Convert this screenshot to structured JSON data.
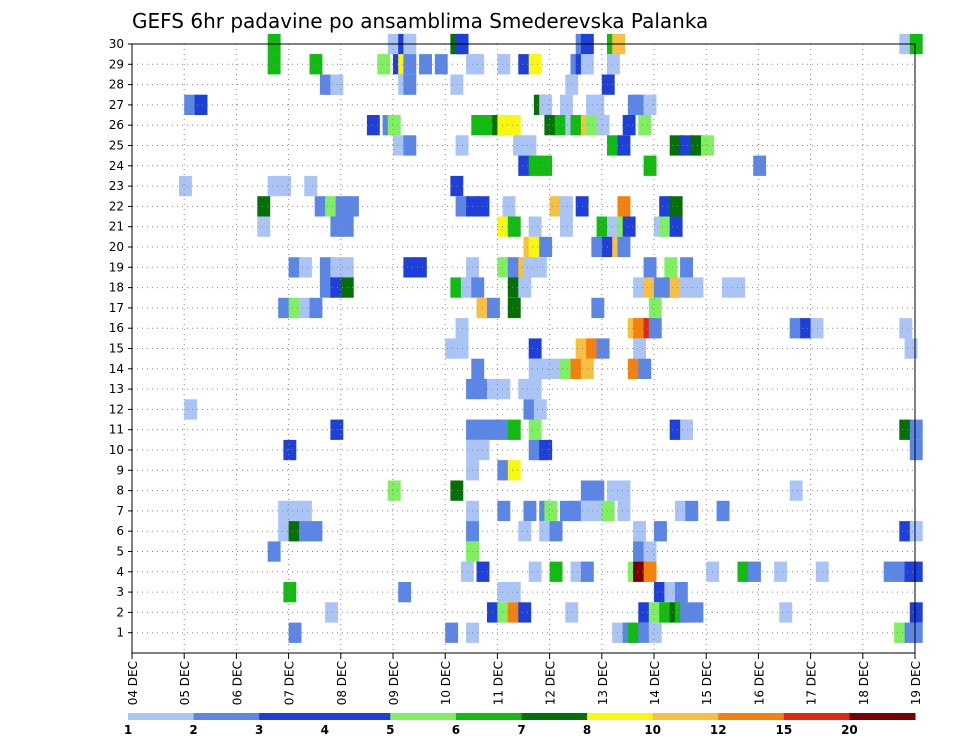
{
  "chart_data": {
    "type": "heatmap",
    "title": "GEFS 6hr padavine po ansamblima Smederevska Palanka",
    "x_tick_labels": [
      "04 DEC",
      "05 DEC",
      "06 DEC",
      "07 DEC",
      "08 DEC",
      "09 DEC",
      "10 DEC",
      "11 DEC",
      "12 DEC",
      "13 DEC",
      "14 DEC",
      "15 DEC",
      "16 DEC",
      "17 DEC",
      "18 DEC",
      "19 DEC"
    ],
    "y_tick_labels": [
      "1",
      "2",
      "3",
      "4",
      "5",
      "6",
      "7",
      "8",
      "9",
      "10",
      "11",
      "12",
      "13",
      "14",
      "15",
      "16",
      "17",
      "18",
      "19",
      "20",
      "21",
      "22",
      "23",
      "24",
      "25",
      "26",
      "27",
      "28",
      "29",
      "30"
    ],
    "ylim": [
      0,
      30
    ],
    "colorbar": {
      "labels": [
        "1",
        "2",
        "3",
        "4",
        "5",
        "6",
        "7",
        "8",
        "10",
        "12",
        "15",
        "20"
      ],
      "colors": [
        "#a9c4f5",
        "#5b86e6",
        "#1e3fd8",
        "#1e3fd8",
        "#80f060",
        "#11bb11",
        "#066f06",
        "#f7f70f",
        "#f7c040",
        "#f5810d",
        "#dd2a10",
        "#7a0000"
      ]
    },
    "grid": true,
    "cells": [
      [
        30,
        2.6,
        6
      ],
      [
        30,
        4.9,
        1
      ],
      [
        30,
        5.1,
        3
      ],
      [
        30,
        5.2,
        1
      ],
      [
        30,
        6.1,
        7
      ],
      [
        30,
        6.2,
        3
      ],
      [
        30,
        8.5,
        2
      ],
      [
        30,
        8.6,
        3
      ],
      [
        30,
        9.1,
        6
      ],
      [
        30,
        9.2,
        10
      ],
      [
        30,
        14.7,
        1
      ],
      [
        30,
        14.9,
        6
      ],
      [
        29,
        2.6,
        6
      ],
      [
        29,
        3.4,
        6
      ],
      [
        29,
        4.7,
        5
      ],
      [
        29,
        5.0,
        3
      ],
      [
        29,
        5.1,
        8
      ],
      [
        29,
        5.2,
        2
      ],
      [
        29,
        5.5,
        2
      ],
      [
        29,
        5.8,
        2
      ],
      [
        29,
        6.4,
        1
      ],
      [
        29,
        6.5,
        1
      ],
      [
        29,
        7.0,
        1
      ],
      [
        29,
        7.4,
        3
      ],
      [
        29,
        7.6,
        8
      ],
      [
        29,
        8.4,
        2
      ],
      [
        29,
        8.5,
        3
      ],
      [
        29,
        8.6,
        1
      ],
      [
        29,
        9.1,
        1
      ],
      [
        28,
        3.6,
        2
      ],
      [
        28,
        3.7,
        2
      ],
      [
        28,
        3.8,
        1
      ],
      [
        28,
        5.1,
        1
      ],
      [
        28,
        5.2,
        2
      ],
      [
        28,
        6.1,
        1
      ],
      [
        28,
        8.3,
        1
      ],
      [
        28,
        9.0,
        3
      ],
      [
        27,
        1.0,
        2
      ],
      [
        27,
        1.2,
        3
      ],
      [
        27,
        7.7,
        7
      ],
      [
        27,
        7.8,
        1
      ],
      [
        27,
        9.5,
        2
      ],
      [
        27,
        9.6,
        2
      ],
      [
        27,
        9.8,
        1
      ],
      [
        27,
        8.2,
        1
      ],
      [
        27,
        8.7,
        1
      ],
      [
        27,
        8.8,
        1
      ],
      [
        26,
        4.8,
        2
      ],
      [
        26,
        4.9,
        5
      ],
      [
        26,
        4.5,
        3
      ],
      [
        26,
        6.5,
        6
      ],
      [
        26,
        6.7,
        6
      ],
      [
        26,
        6.9,
        7
      ],
      [
        26,
        7.0,
        8
      ],
      [
        26,
        7.2,
        8
      ],
      [
        26,
        7.9,
        7
      ],
      [
        26,
        8.1,
        6
      ],
      [
        26,
        8.3,
        1
      ],
      [
        26,
        8.4,
        6
      ],
      [
        26,
        8.6,
        10
      ],
      [
        26,
        8.7,
        5
      ],
      [
        26,
        8.9,
        1
      ],
      [
        26,
        9.4,
        3
      ],
      [
        26,
        9.7,
        5
      ],
      [
        25,
        5.0,
        1
      ],
      [
        25,
        5.2,
        2
      ],
      [
        25,
        6.2,
        1
      ],
      [
        25,
        7.3,
        1
      ],
      [
        25,
        7.5,
        1
      ],
      [
        25,
        9.1,
        6
      ],
      [
        25,
        9.3,
        3
      ],
      [
        25,
        10.3,
        7
      ],
      [
        25,
        10.5,
        3
      ],
      [
        25,
        10.7,
        7
      ],
      [
        25,
        10.9,
        5
      ],
      [
        24,
        7.4,
        3
      ],
      [
        24,
        7.6,
        6
      ],
      [
        24,
        7.8,
        6
      ],
      [
        24,
        9.8,
        6
      ],
      [
        24,
        11.9,
        2
      ],
      [
        23,
        0.9,
        1
      ],
      [
        23,
        2.6,
        1
      ],
      [
        23,
        2.8,
        1
      ],
      [
        23,
        3.3,
        1
      ],
      [
        23,
        6.1,
        3
      ],
      [
        22,
        2.4,
        7
      ],
      [
        22,
        3.5,
        2
      ],
      [
        22,
        3.7,
        5
      ],
      [
        22,
        3.9,
        2
      ],
      [
        22,
        4.1,
        2
      ],
      [
        22,
        6.2,
        2
      ],
      [
        22,
        6.4,
        3
      ],
      [
        22,
        6.6,
        3
      ],
      [
        22,
        7.1,
        1
      ],
      [
        22,
        8.0,
        11
      ],
      [
        22,
        8.2,
        1
      ],
      [
        22,
        8.5,
        3
      ],
      [
        22,
        9.3,
        13
      ],
      [
        22,
        10.1,
        3
      ],
      [
        22,
        10.3,
        7
      ],
      [
        21,
        2.4,
        1
      ],
      [
        21,
        3.8,
        2
      ],
      [
        21,
        4.0,
        2
      ],
      [
        21,
        7.0,
        8
      ],
      [
        21,
        7.2,
        6
      ],
      [
        21,
        7.6,
        1
      ],
      [
        21,
        8.2,
        1
      ],
      [
        21,
        8.9,
        6
      ],
      [
        21,
        9.1,
        1
      ],
      [
        21,
        9.3,
        5
      ],
      [
        21,
        9.4,
        3
      ],
      [
        21,
        10.0,
        1
      ],
      [
        21,
        10.1,
        5
      ],
      [
        21,
        10.3,
        3
      ],
      [
        20,
        7.5,
        11
      ],
      [
        20,
        7.6,
        8
      ],
      [
        20,
        7.8,
        2
      ],
      [
        20,
        8.8,
        2
      ],
      [
        20,
        9.0,
        3
      ],
      [
        20,
        9.2,
        11
      ],
      [
        20,
        9.3,
        2
      ],
      [
        19,
        3.0,
        2
      ],
      [
        19,
        3.2,
        1
      ],
      [
        19,
        3.6,
        2
      ],
      [
        19,
        3.8,
        1
      ],
      [
        19,
        4.0,
        1
      ],
      [
        19,
        5.2,
        3
      ],
      [
        19,
        5.4,
        3
      ],
      [
        19,
        6.4,
        1
      ],
      [
        19,
        7.0,
        5
      ],
      [
        19,
        7.2,
        2
      ],
      [
        19,
        7.4,
        11
      ],
      [
        19,
        7.5,
        1
      ],
      [
        19,
        7.7,
        1
      ],
      [
        19,
        9.8,
        2
      ],
      [
        19,
        10.2,
        5
      ],
      [
        19,
        10.5,
        2
      ],
      [
        18,
        3.6,
        2
      ],
      [
        18,
        3.8,
        3
      ],
      [
        18,
        4.0,
        7
      ],
      [
        18,
        6.1,
        6
      ],
      [
        18,
        6.3,
        1
      ],
      [
        18,
        6.5,
        2
      ],
      [
        18,
        7.2,
        7
      ],
      [
        18,
        7.4,
        1
      ],
      [
        18,
        9.6,
        1
      ],
      [
        18,
        9.8,
        10
      ],
      [
        18,
        10.0,
        2
      ],
      [
        18,
        10.2,
        2
      ],
      [
        18,
        10.3,
        10
      ],
      [
        18,
        10.5,
        1
      ],
      [
        18,
        10.7,
        1
      ],
      [
        18,
        11.3,
        1
      ],
      [
        18,
        11.5,
        1
      ],
      [
        17,
        2.8,
        2
      ],
      [
        17,
        3.0,
        5
      ],
      [
        17,
        3.2,
        1
      ],
      [
        17,
        3.4,
        2
      ],
      [
        17,
        6.6,
        10
      ],
      [
        17,
        6.8,
        2
      ],
      [
        17,
        7.2,
        7
      ],
      [
        17,
        8.8,
        2
      ],
      [
        17,
        9.9,
        5
      ],
      [
        16,
        6.2,
        1
      ],
      [
        16,
        9.5,
        10
      ],
      [
        16,
        9.6,
        12
      ],
      [
        16,
        9.8,
        15
      ],
      [
        16,
        9.9,
        2
      ],
      [
        16,
        12.6,
        2
      ],
      [
        16,
        12.8,
        3
      ],
      [
        16,
        13.0,
        1
      ],
      [
        16,
        14.7,
        1
      ],
      [
        15,
        6.0,
        1
      ],
      [
        15,
        6.2,
        1
      ],
      [
        15,
        7.6,
        3
      ],
      [
        15,
        8.5,
        10
      ],
      [
        15,
        8.7,
        12
      ],
      [
        15,
        8.9,
        2
      ],
      [
        15,
        9.6,
        1
      ],
      [
        15,
        14.8,
        1
      ],
      [
        14,
        6.5,
        2
      ],
      [
        14,
        7.6,
        1
      ],
      [
        14,
        7.8,
        1
      ],
      [
        14,
        8.0,
        1
      ],
      [
        14,
        8.2,
        5
      ],
      [
        14,
        8.4,
        12
      ],
      [
        14,
        8.6,
        11
      ],
      [
        14,
        9.5,
        12
      ],
      [
        14,
        9.7,
        2
      ],
      [
        13,
        6.4,
        2
      ],
      [
        13,
        6.6,
        2
      ],
      [
        13,
        6.8,
        1
      ],
      [
        13,
        7.0,
        1
      ],
      [
        13,
        7.4,
        1
      ],
      [
        13,
        7.6,
        1
      ],
      [
        12,
        1.0,
        1
      ],
      [
        12,
        7.5,
        2
      ],
      [
        12,
        7.7,
        1
      ],
      [
        11,
        3.8,
        3
      ],
      [
        11,
        6.4,
        2
      ],
      [
        11,
        6.6,
        2
      ],
      [
        11,
        6.8,
        2
      ],
      [
        11,
        7.0,
        2
      ],
      [
        11,
        7.2,
        6
      ],
      [
        11,
        7.6,
        5
      ],
      [
        11,
        10.3,
        3
      ],
      [
        11,
        10.5,
        1
      ],
      [
        11,
        14.7,
        7
      ],
      [
        11,
        14.9,
        2
      ],
      [
        10,
        2.9,
        3
      ],
      [
        10,
        6.4,
        1
      ],
      [
        10,
        6.6,
        1
      ],
      [
        10,
        7.6,
        2
      ],
      [
        10,
        7.8,
        3
      ],
      [
        10,
        14.9,
        2
      ],
      [
        9,
        6.4,
        1
      ],
      [
        9,
        7.0,
        2
      ],
      [
        9,
        7.2,
        8
      ],
      [
        8,
        4.9,
        5
      ],
      [
        8,
        6.1,
        7
      ],
      [
        8,
        8.6,
        2
      ],
      [
        8,
        8.8,
        2
      ],
      [
        8,
        9.1,
        1
      ],
      [
        8,
        9.3,
        1
      ],
      [
        8,
        12.6,
        1
      ],
      [
        7,
        2.8,
        1
      ],
      [
        7,
        3.0,
        1
      ],
      [
        7,
        3.2,
        1
      ],
      [
        7,
        6.4,
        1
      ],
      [
        7,
        7.0,
        2
      ],
      [
        7,
        7.5,
        2
      ],
      [
        7,
        7.8,
        2
      ],
      [
        7,
        7.9,
        5
      ],
      [
        7,
        8.2,
        2
      ],
      [
        7,
        8.4,
        2
      ],
      [
        7,
        8.6,
        1
      ],
      [
        7,
        8.8,
        1
      ],
      [
        7,
        9.0,
        5
      ],
      [
        7,
        9.3,
        1
      ],
      [
        7,
        10.4,
        1
      ],
      [
        7,
        10.6,
        2
      ],
      [
        7,
        11.2,
        2
      ],
      [
        6,
        2.8,
        1
      ],
      [
        6,
        3.0,
        7
      ],
      [
        6,
        3.2,
        2
      ],
      [
        6,
        3.4,
        2
      ],
      [
        6,
        6.4,
        2
      ],
      [
        6,
        7.4,
        1
      ],
      [
        6,
        7.8,
        1
      ],
      [
        6,
        8.0,
        2
      ],
      [
        6,
        9.6,
        1
      ],
      [
        6,
        10.0,
        2
      ],
      [
        6,
        14.7,
        3
      ],
      [
        6,
        14.9,
        1
      ],
      [
        5,
        2.6,
        2
      ],
      [
        5,
        6.4,
        5
      ],
      [
        5,
        9.6,
        2
      ],
      [
        5,
        9.8,
        1
      ],
      [
        4,
        6.3,
        1
      ],
      [
        4,
        6.6,
        3
      ],
      [
        4,
        7.6,
        1
      ],
      [
        4,
        8.0,
        6
      ],
      [
        4,
        8.4,
        1
      ],
      [
        4,
        8.6,
        2
      ],
      [
        4,
        9.5,
        5
      ],
      [
        4,
        9.6,
        20
      ],
      [
        4,
        9.8,
        12
      ],
      [
        4,
        11.0,
        1
      ],
      [
        4,
        11.6,
        6
      ],
      [
        4,
        11.8,
        2
      ],
      [
        4,
        14.4,
        2
      ],
      [
        4,
        14.6,
        2
      ],
      [
        4,
        14.8,
        3
      ],
      [
        4,
        14.9,
        3
      ],
      [
        4,
        12.3,
        1
      ],
      [
        4,
        13.1,
        1
      ],
      [
        3,
        2.9,
        6
      ],
      [
        3,
        5.1,
        2
      ],
      [
        3,
        7.0,
        1
      ],
      [
        3,
        7.2,
        1
      ],
      [
        3,
        10.0,
        3
      ],
      [
        3,
        10.2,
        1
      ],
      [
        3,
        10.4,
        2
      ],
      [
        2,
        3.7,
        1
      ],
      [
        2,
        6.8,
        3
      ],
      [
        2,
        7.0,
        5
      ],
      [
        2,
        7.2,
        12
      ],
      [
        2,
        7.4,
        3
      ],
      [
        2,
        8.3,
        1
      ],
      [
        2,
        9.7,
        3
      ],
      [
        2,
        9.9,
        5
      ],
      [
        2,
        10.0,
        5
      ],
      [
        2,
        10.1,
        6
      ],
      [
        2,
        10.3,
        7
      ],
      [
        2,
        10.4,
        6
      ],
      [
        2,
        10.5,
        2
      ],
      [
        2,
        10.7,
        2
      ],
      [
        2,
        12.4,
        1
      ],
      [
        2,
        14.9,
        3
      ],
      [
        1,
        3.0,
        2
      ],
      [
        1,
        6.0,
        2
      ],
      [
        1,
        6.4,
        1
      ],
      [
        1,
        9.2,
        1
      ],
      [
        1,
        9.4,
        2
      ],
      [
        1,
        9.5,
        6
      ],
      [
        1,
        9.7,
        2
      ],
      [
        1,
        9.9,
        1
      ],
      [
        1,
        14.6,
        5
      ],
      [
        1,
        14.8,
        2
      ],
      [
        1,
        14.9,
        2
      ]
    ]
  }
}
